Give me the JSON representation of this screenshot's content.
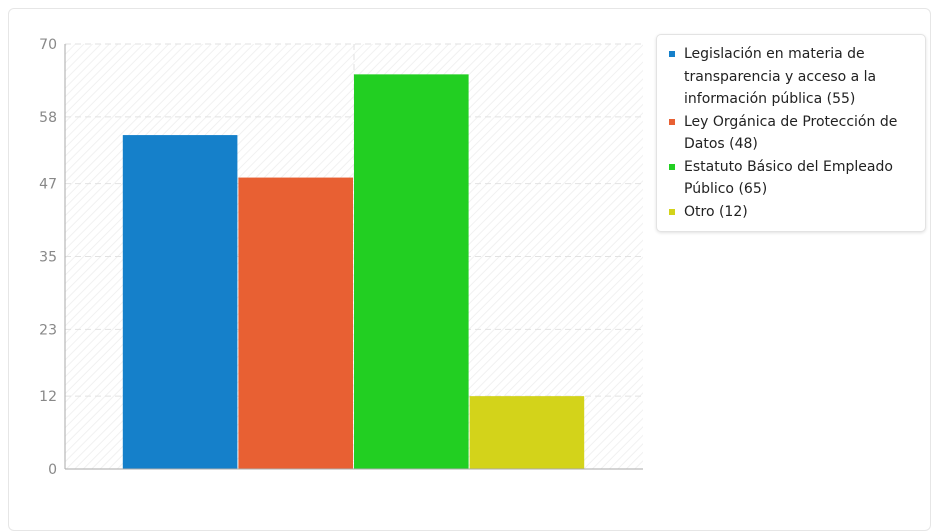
{
  "chart_data": {
    "type": "bar",
    "title": "",
    "xlabel": "",
    "ylabel": "",
    "ylim": [
      0,
      70
    ],
    "yticks": [
      0,
      12,
      23,
      35,
      47,
      58,
      70
    ],
    "grid": true,
    "legend_position": "right",
    "series": [
      {
        "name": "Legislación en materia de transparencia y acceso a la información pública (55)",
        "value": 55,
        "color": "#1580ca"
      },
      {
        "name": "Ley Orgánica de Protección de Datos (48)",
        "value": 48,
        "color": "#e86033"
      },
      {
        "name": "Estatuto Básico del Empleado Público (65)",
        "value": 65,
        "color": "#22cf22"
      },
      {
        "name": "Otro (12)",
        "value": 12,
        "color": "#d3d31a"
      }
    ]
  }
}
